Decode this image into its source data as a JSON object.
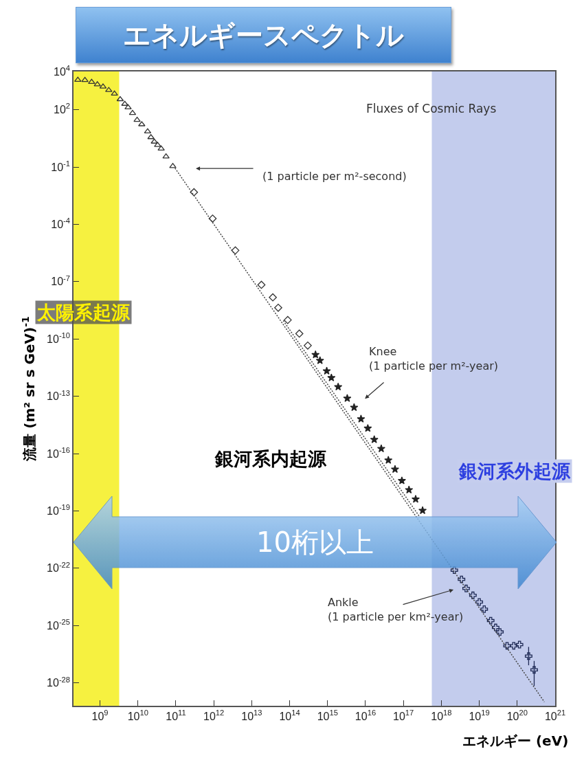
{
  "chart_data": {
    "type": "scatter",
    "title": "エネルギースペクトル",
    "xlabel": "エネルギー (eV)",
    "ylabel": "流量 (m² sr s GeV)$^{-1}$",
    "log": "xy",
    "grid": false,
    "xlim": [
      200000000.0,
      1e+21
    ],
    "xticks": [
      {
        "value": 1000000000.0,
        "label": "10$^{9}$"
      },
      {
        "value": 10000000000.0,
        "label": "10$^{10}$"
      },
      {
        "value": 100000000000.0,
        "label": "10$^{11}$"
      },
      {
        "value": 1000000000000.0,
        "label": "10$^{12}$"
      },
      {
        "value": 10000000000000.0,
        "label": "10$^{13}$"
      },
      {
        "value": 100000000000000.0,
        "label": "10$^{14}$"
      },
      {
        "value": 1000000000000000.0,
        "label": "10$^{15}$"
      },
      {
        "value": 1e+16,
        "label": "10$^{16}$"
      },
      {
        "value": 1e+17,
        "label": "10$^{17}$"
      },
      {
        "value": 1e+18,
        "label": "10$^{18}$"
      },
      {
        "value": 1e+19,
        "label": "10$^{19}$"
      },
      {
        "value": 1e+20,
        "label": "10$^{20}$"
      },
      {
        "value": 1e+21,
        "label": "10$^{21}$"
      }
    ],
    "ylim": [
      6.3e-30,
      10000.0
    ],
    "yticks": [
      {
        "value": 10000.0,
        "label": "10$^{4}$"
      },
      {
        "value": 100.0,
        "label": "10$^{2}$"
      },
      {
        "value": 0.1,
        "label": "10$^{-1}$"
      },
      {
        "value": 0.0001,
        "label": "10$^{-4}$"
      },
      {
        "value": 1e-07,
        "label": "10$^{-7}$"
      },
      {
        "value": 1e-10,
        "label": "10$^{-10}$"
      },
      {
        "value": 1e-13,
        "label": "10$^{-13}$"
      },
      {
        "value": 1e-16,
        "label": "10$^{-16}$"
      },
      {
        "value": 1e-19,
        "label": "10$^{-19}$"
      },
      {
        "value": 1e-22,
        "label": "10$^{-22}$"
      },
      {
        "value": 1e-25,
        "label": "10$^{-25}$"
      },
      {
        "value": 1e-28,
        "label": "10$^{-28}$"
      }
    ],
    "series": [
      {
        "marker": "triangle",
        "color": "#333333",
        "x": [
          260000000.0,
          400000000.0,
          600000000.0,
          850000000.0,
          1200000000.0,
          1700000000.0,
          2400000000.0,
          3400000000.0,
          4500000000.0,
          5500000000.0,
          7200000000.0,
          9500000000.0,
          12600000000.0,
          18000000000.0,
          22000000000.0,
          27000000000.0,
          33000000000.0,
          41000000000.0,
          55000000000.0,
          83000000000.0
        ],
        "values": [
          3600,
          3500,
          2800,
          2100,
          1600,
          1050,
          690,
          350,
          200,
          130,
          66,
          29,
          17,
          7.2,
          3.6,
          2.1,
          1.4,
          0.91,
          0.35,
          0.11
        ]
      },
      {
        "marker": "diamond",
        "color": "#333333",
        "x": [
          300000000000.0,
          930000000000.0,
          3700000000000.0,
          18000000000000.0,
          36000000000000.0,
          50000000000000.0,
          89000000000000.0,
          180000000000000.0,
          300000000000000.0
        ],
        "values": [
          0.0048,
          0.0002,
          4.3e-06,
          6.8e-08,
          1.5e-08,
          4.3e-09,
          9.8e-10,
          1.9e-10,
          4.5e-11
        ]
      },
      {
        "marker": "star",
        "color": "#222222",
        "x": [
          480000000000000.0,
          630000000000000.0,
          950000000000000.0,
          1260000000000000.0,
          1900000000000000.0,
          3300000000000000.0,
          5000000000000000.0,
          7600000000000000.0,
          1.15e+16,
          1.7e+16,
          2.6e+16,
          4e+16,
          6e+16,
          9.1e+16,
          1.4e+17,
          2.1e+17,
          3.2e+17
        ],
        "values": [
          1.5e-11,
          7.4e-12,
          2.1e-12,
          9.3e-13,
          3.1e-13,
          7.8e-14,
          2.6e-14,
          6.5e-15,
          2.1e-15,
          5.4e-16,
          1.8e-16,
          4.5e-17,
          1.5e-17,
          3.8e-18,
          1.26e-18,
          4.1e-19,
          1.05e-19
        ]
      },
      {
        "marker": "cross",
        "color": "#1f2a55",
        "x": [
          2.2e+18,
          3.4e+18,
          4.5e+18,
          6.8e+18,
          1e+19,
          1.35e+19,
          2e+19,
          2.7e+19,
          3.5e+19,
          5.4e+19,
          8.1e+19,
          1.15e+20,
          2e+20,
          2.8e+20
        ],
        "values": [
          7.9e-23,
          2.6e-23,
          8.7e-24,
          3.8e-24,
          1.7e-24,
          7.2e-25,
          1.8e-25,
          7.9e-26,
          4.6e-26,
          8.7e-27,
          8.7e-27,
          1e-26,
          2.5e-27,
          4.8e-28
        ],
        "errors": [
          null,
          null,
          null,
          null,
          null,
          null,
          null,
          null,
          null,
          null,
          null,
          null,
          [
            8.3e-28,
            7.6e-27
          ],
          [
            6.9e-29,
            1.4e-27
          ]
        ]
      },
      {
        "type": "line",
        "line_style": "dotted",
        "marker": "none",
        "color": "#444444",
        "x": [
          95000000000.0,
          5.2e+20
        ],
        "values": [
          0.087,
          1e-29
        ]
      },
      {
        "type": "line",
        "line_style": "dotted",
        "marker": "none",
        "color": "#444444",
        "x": [
          68000000000000.0,
          2.6e+17
        ],
        "values": [
          9.1e-10,
          5.3e-20
        ]
      }
    ],
    "bands": [
      {
        "axis": "x",
        "from": 200000000.0,
        "to": 3200000000.0,
        "color": "#f5ee1e",
        "label": "太陽系起源"
      },
      {
        "axis": "x",
        "from": 5.6e+17,
        "to": 1e+21,
        "color": "#b8c3ea",
        "label": "銀河系外起源"
      }
    ],
    "annotations": [
      "Fluxes of Cosmic Rays",
      "(1 particle per m²-second)",
      "Knee\n(1 particle per m²-year)",
      "Ankle\n(1 particle per km²-year)",
      "銀河系内起源",
      "10桁以上"
    ]
  }
}
